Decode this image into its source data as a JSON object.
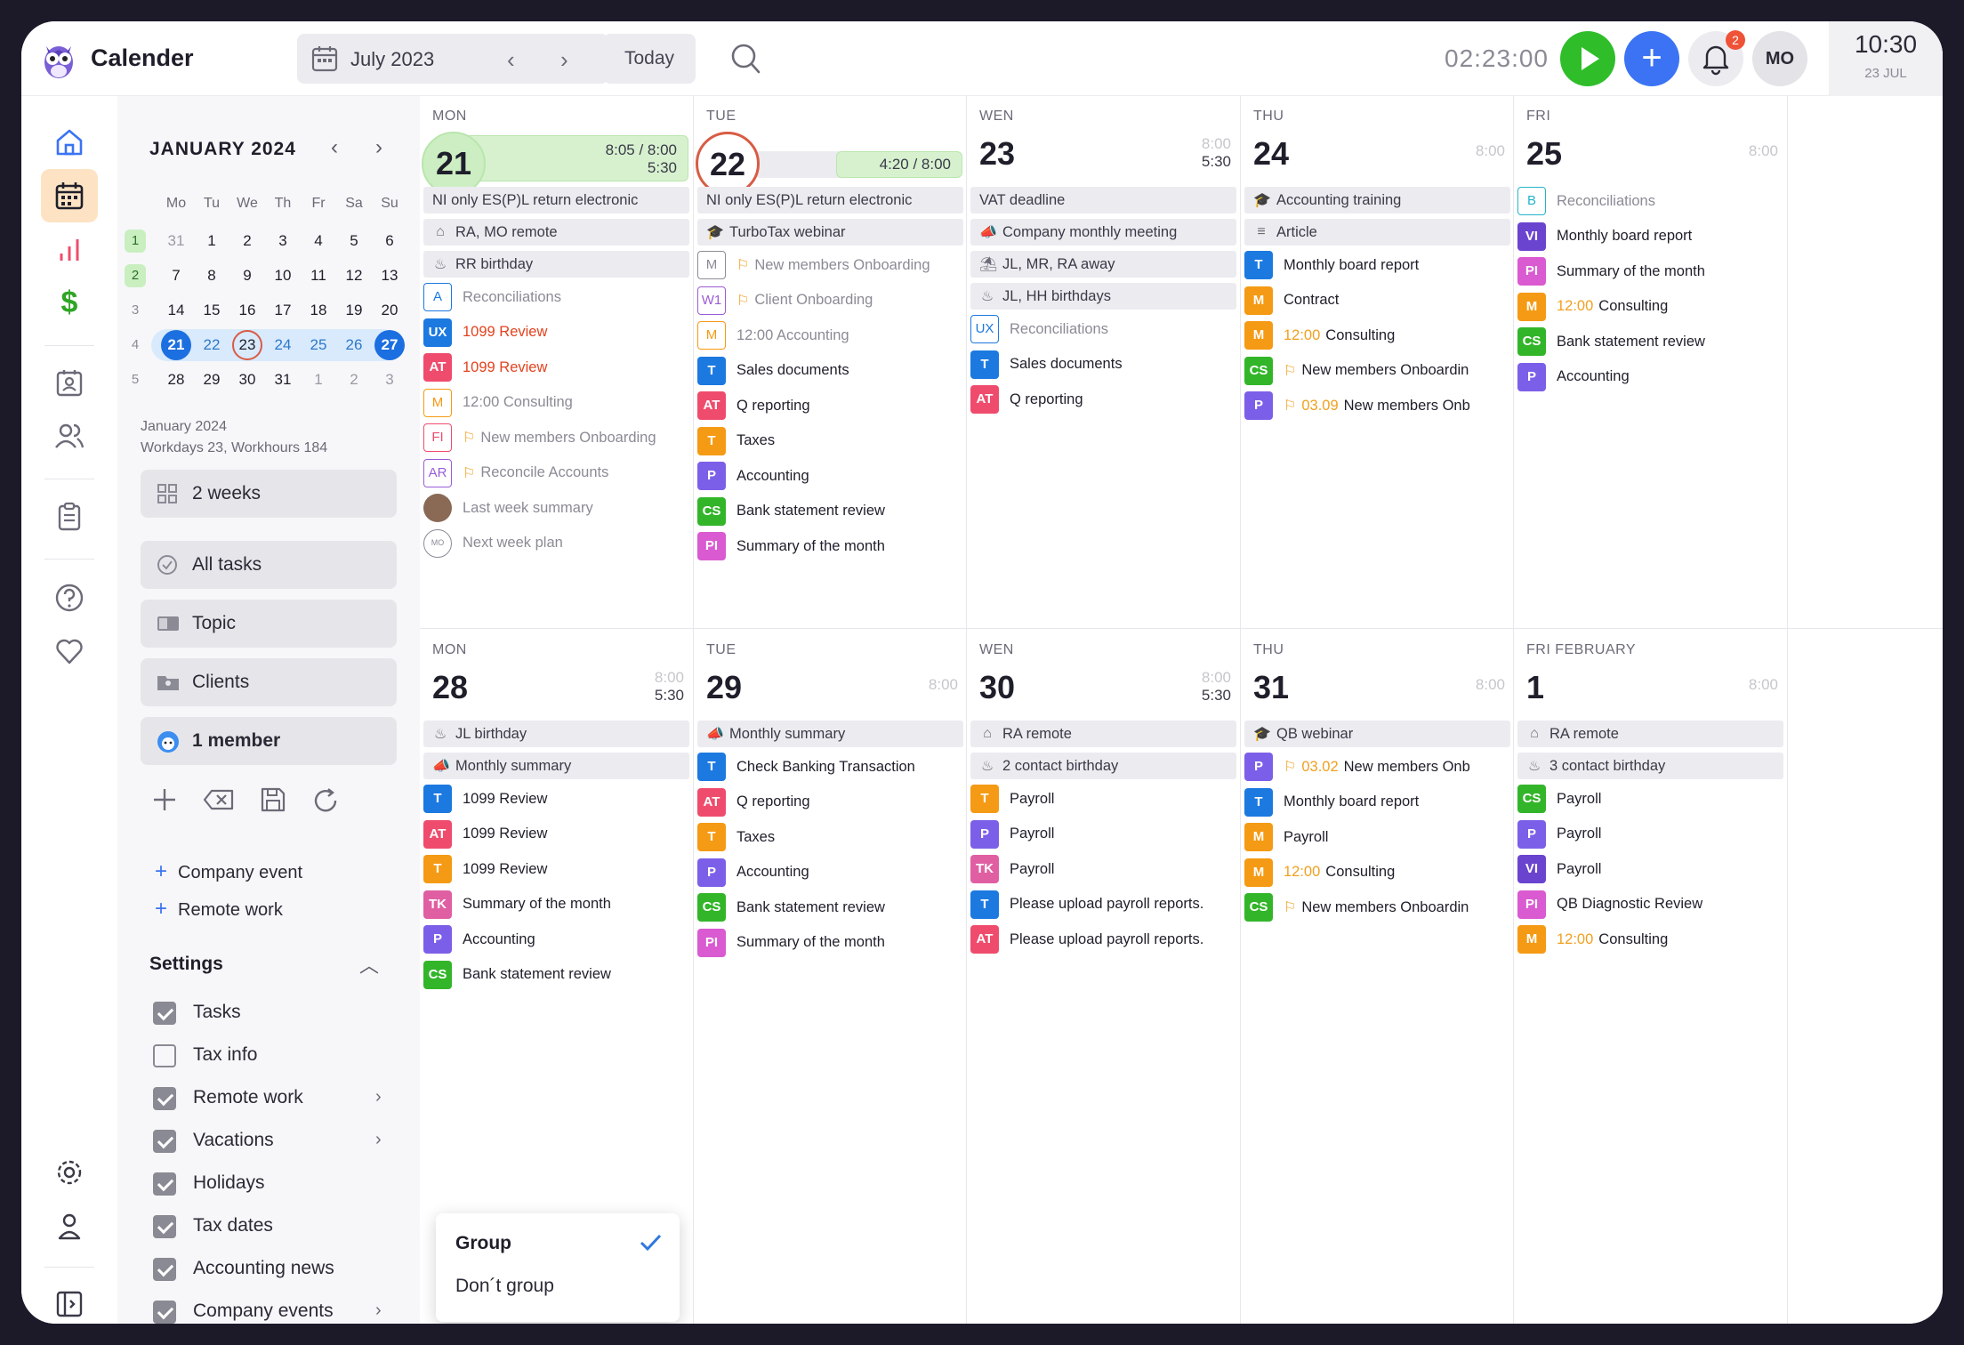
{
  "header": {
    "app_title": "Calender",
    "month_label": "July 2023",
    "today_label": "Today",
    "timer": "02:23:00",
    "notif_count": "2",
    "avatar": "MO",
    "clock_time": "10:30",
    "clock_date": "23 JUL"
  },
  "mini_calendar": {
    "title": "JANUARY 2024",
    "weekdays": [
      "Mo",
      "Tu",
      "We",
      "Th",
      "Fr",
      "Sa",
      "Su"
    ],
    "weeks": [
      {
        "n": "1",
        "days": [
          "31",
          "1",
          "2",
          "3",
          "4",
          "5",
          "6"
        ]
      },
      {
        "n": "2",
        "days": [
          "7",
          "8",
          "9",
          "10",
          "11",
          "12",
          "13"
        ]
      },
      {
        "n": "3",
        "days": [
          "14",
          "15",
          "16",
          "17",
          "18",
          "19",
          "20"
        ]
      },
      {
        "n": "4",
        "days": [
          "21",
          "22",
          "23",
          "24",
          "25",
          "26",
          "27"
        ]
      },
      {
        "n": "5",
        "days": [
          "28",
          "29",
          "30",
          "31",
          "1",
          "2",
          "3"
        ]
      }
    ],
    "summary_month": "January 2024",
    "summary_stats": "Workdays 23, Workhours 184"
  },
  "left_panel": {
    "view_button": "2 weeks",
    "all_tasks": "All tasks",
    "topic": "Topic",
    "clients": "Clients",
    "member": "1 member",
    "company_event": "Company event",
    "remote_work": "Remote work",
    "settings_title": "Settings",
    "settings": [
      {
        "label": "Tasks",
        "checked": true,
        "arrow": false
      },
      {
        "label": "Tax info",
        "checked": false,
        "arrow": false
      },
      {
        "label": "Remote work",
        "checked": true,
        "arrow": true
      },
      {
        "label": "Vacations",
        "checked": true,
        "arrow": true
      },
      {
        "label": "Holidays",
        "checked": true,
        "arrow": false
      },
      {
        "label": "Tax dates",
        "checked": true,
        "arrow": false
      },
      {
        "label": "Accounting news",
        "checked": true,
        "arrow": false
      },
      {
        "label": "Company events",
        "checked": true,
        "arrow": true
      }
    ]
  },
  "popup": {
    "option_group": "Group",
    "option_dont": "Don´t group"
  },
  "colors": {
    "T": "#1c79e0",
    "AT": "#ef4c6d",
    "M": "#f59a14",
    "CS": "#33b52a",
    "P": "#7c5fe8",
    "PI": "#d95ad1",
    "VI": "#6a44cf",
    "TK": "#e05fa3",
    "UX": "#1c79e0"
  },
  "weeks": [
    {
      "days": [
        {
          "name": "MON",
          "num": "21",
          "hours": "",
          "progress": "8:05 / 8:00",
          "progress_sub": "5:30",
          "circle": "green",
          "events": [
            {
              "kind": "band",
              "icon": "",
              "text": "NI only ES(P)L return electronic"
            },
            {
              "kind": "band",
              "icon": "⌂",
              "text": "RA, MO remote"
            },
            {
              "kind": "band",
              "icon": "♨",
              "text": "RR birthday"
            },
            {
              "kind": "tag",
              "tag": "A",
              "outline": "#1c79e0",
              "text": "Reconciliations",
              "style": "gray"
            },
            {
              "kind": "tag",
              "tag": "UX",
              "text": "1099 Review",
              "style": "red"
            },
            {
              "kind": "tag",
              "tag": "AT",
              "text": "1099 Review",
              "style": "red"
            },
            {
              "kind": "tag",
              "tag": "M",
              "outline": "#f59a14",
              "text": "12:00 Consulting",
              "style": "gray"
            },
            {
              "kind": "tag",
              "tag": "FI",
              "outline": "#ef4c6d",
              "text": "New members Onboarding",
              "style": "gray",
              "flag": true
            },
            {
              "kind": "tag",
              "tag": "AR",
              "outline": "#9a5cd6",
              "text": "Reconcile Accounts",
              "style": "gray",
              "flag": true
            },
            {
              "kind": "tag",
              "tag": "●",
              "outline": "#8b8b96",
              "text": "Last week summary",
              "style": "gray"
            },
            {
              "kind": "tag",
              "tag": "MO",
              "outline": "#8b8b96",
              "text": "Next week plan",
              "style": "gray"
            }
          ]
        },
        {
          "name": "TUE",
          "num": "22",
          "hours": "",
          "progress": "4:20 / 8:00",
          "progress_sub": "",
          "circle": "ring",
          "events": [
            {
              "kind": "band",
              "icon": "",
              "text": "NI only ES(P)L return electronic"
            },
            {
              "kind": "band",
              "icon": "🎓",
              "text": "TurboTax webinar"
            },
            {
              "kind": "tag",
              "tag": "M",
              "outline": "#8b8b96",
              "text": "New members Onboarding",
              "style": "gray",
              "flag": true
            },
            {
              "kind": "tag",
              "tag": "W1",
              "outline": "#9a5cd6",
              "text": "Client Onboarding",
              "style": "gray",
              "flag": true
            },
            {
              "kind": "tag",
              "tag": "M",
              "outline": "#f59a14",
              "text": "12:00 Accounting",
              "style": "gray"
            },
            {
              "kind": "tag",
              "tag": "T",
              "text": "Sales documents"
            },
            {
              "kind": "tag",
              "tag": "AT",
              "text": "Q reporting"
            },
            {
              "kind": "tag",
              "tag": "T",
              "bg": "#f59a14",
              "text": "Taxes"
            },
            {
              "kind": "tag",
              "tag": "P",
              "text": "Accounting"
            },
            {
              "kind": "tag",
              "tag": "CS",
              "text": "Bank statement review"
            },
            {
              "kind": "tag",
              "tag": "PI",
              "text": "Summary of the month"
            }
          ]
        },
        {
          "name": "WEN",
          "num": "23",
          "hours": "8:00\n5:30",
          "events": [
            {
              "kind": "band",
              "icon": "",
              "text": "VAT deadline"
            },
            {
              "kind": "band",
              "icon": "📣",
              "text": "Company monthly meeting"
            },
            {
              "kind": "band",
              "icon": "⛱",
              "text": "JL, MR, RA away"
            },
            {
              "kind": "band",
              "icon": "♨",
              "text": "JL, HH birthdays"
            },
            {
              "kind": "tag",
              "tag": "UX",
              "outline": "#1c79e0",
              "text": "Reconciliations",
              "style": "gray"
            },
            {
              "kind": "tag",
              "tag": "T",
              "text": "Sales documents"
            },
            {
              "kind": "tag",
              "tag": "AT",
              "text": "Q reporting"
            }
          ]
        },
        {
          "name": "THU",
          "num": "24",
          "hours": "8:00",
          "events": [
            {
              "kind": "band",
              "icon": "🎓",
              "text": "Accounting training"
            },
            {
              "kind": "band",
              "icon": "≡",
              "text": "Article"
            },
            {
              "kind": "tag",
              "tag": "T",
              "text": "Monthly board report"
            },
            {
              "kind": "tag",
              "tag": "M",
              "text": "Contract"
            },
            {
              "kind": "tag",
              "tag": "M",
              "text": "Consulting",
              "time": "12:00"
            },
            {
              "kind": "tag",
              "tag": "CS",
              "text": "New members Onboardin",
              "flag": true
            },
            {
              "kind": "tag",
              "tag": "P",
              "text": "New members Onb",
              "flag": true,
              "time": "03.09"
            }
          ]
        },
        {
          "name": "FRI",
          "num": "25",
          "hours": "8:00",
          "events": [
            {
              "kind": "tag",
              "tag": "B",
              "outline": "#24b5c9",
              "text": "Reconciliations",
              "style": "gray"
            },
            {
              "kind": "tag",
              "tag": "VI",
              "text": "Monthly board report"
            },
            {
              "kind": "tag",
              "tag": "PI",
              "text": "Summary of the month"
            },
            {
              "kind": "tag",
              "tag": "M",
              "text": "Consulting",
              "time": "12:00"
            },
            {
              "kind": "tag",
              "tag": "CS",
              "text": "Bank statement review"
            },
            {
              "kind": "tag",
              "tag": "P",
              "text": "Accounting"
            }
          ]
        }
      ]
    },
    {
      "days": [
        {
          "name": "MON",
          "num": "28",
          "hours": "8:00\n5:30",
          "hours_dark": true,
          "events": [
            {
              "kind": "band",
              "icon": "♨",
              "text": "JL birthday"
            },
            {
              "kind": "band",
              "icon": "📣",
              "text": "Monthly summary"
            },
            {
              "kind": "tag",
              "tag": "T",
              "text": "1099 Review"
            },
            {
              "kind": "tag",
              "tag": "AT",
              "text": "1099 Review"
            },
            {
              "kind": "tag",
              "tag": "T",
              "bg": "#f59a14",
              "text": "1099 Review"
            },
            {
              "kind": "tag",
              "tag": "TK",
              "text": "Summary of the month"
            },
            {
              "kind": "tag",
              "tag": "P",
              "text": "Accounting"
            },
            {
              "kind": "tag",
              "tag": "CS",
              "text": "Bank statement review"
            }
          ]
        },
        {
          "name": "TUE",
          "num": "29",
          "hours": "8:00",
          "events": [
            {
              "kind": "band",
              "icon": "📣",
              "text": "Monthly summary"
            },
            {
              "kind": "tag",
              "tag": "T",
              "text": "Check Banking Transaction"
            },
            {
              "kind": "tag",
              "tag": "AT",
              "text": "Q reporting"
            },
            {
              "kind": "tag",
              "tag": "T",
              "bg": "#f59a14",
              "text": "Taxes"
            },
            {
              "kind": "tag",
              "tag": "P",
              "text": "Accounting"
            },
            {
              "kind": "tag",
              "tag": "CS",
              "text": "Bank statement review"
            },
            {
              "kind": "tag",
              "tag": "PI",
              "text": "Summary of the month"
            }
          ]
        },
        {
          "name": "WEN",
          "num": "30",
          "hours": "8:00\n5:30",
          "hours_dark": true,
          "events": [
            {
              "kind": "band",
              "icon": "⌂",
              "text": "RA remote"
            },
            {
              "kind": "band",
              "icon": "♨",
              "text": "2 contact birthday"
            },
            {
              "kind": "tag",
              "tag": "T",
              "bg": "#f59a14",
              "text": "Payroll"
            },
            {
              "kind": "tag",
              "tag": "P",
              "text": "Payroll"
            },
            {
              "kind": "tag",
              "tag": "TK",
              "text": "Payroll"
            },
            {
              "kind": "tag",
              "tag": "T",
              "text": "Please upload payroll reports."
            },
            {
              "kind": "tag",
              "tag": "AT",
              "text": "Please upload payroll reports."
            }
          ]
        },
        {
          "name": "THU",
          "num": "31",
          "hours": "8:00",
          "events": [
            {
              "kind": "band",
              "icon": "🎓",
              "text": "QB webinar"
            },
            {
              "kind": "tag",
              "tag": "P",
              "text": "New members Onb",
              "flag": true,
              "time": "03.02"
            },
            {
              "kind": "tag",
              "tag": "T",
              "text": "Monthly board report"
            },
            {
              "kind": "tag",
              "tag": "M",
              "text": "Payroll"
            },
            {
              "kind": "tag",
              "tag": "M",
              "text": "Consulting",
              "time": "12:00"
            },
            {
              "kind": "tag",
              "tag": "CS",
              "text": "New members Onboardin",
              "flag": true
            }
          ]
        },
        {
          "name": "FRI  FEBRUARY",
          "num": "1",
          "hours": "8:00",
          "events": [
            {
              "kind": "band",
              "icon": "⌂",
              "text": "RA remote"
            },
            {
              "kind": "band",
              "icon": "♨",
              "text": "3 contact birthday"
            },
            {
              "kind": "tag",
              "tag": "CS",
              "text": "Payroll"
            },
            {
              "kind": "tag",
              "tag": "P",
              "text": "Payroll"
            },
            {
              "kind": "tag",
              "tag": "VI",
              "text": "Payroll"
            },
            {
              "kind": "tag",
              "tag": "PI",
              "text": "QB Diagnostic Review"
            },
            {
              "kind": "tag",
              "tag": "M",
              "text": "Consulting",
              "time": "12:00"
            }
          ]
        }
      ]
    }
  ]
}
